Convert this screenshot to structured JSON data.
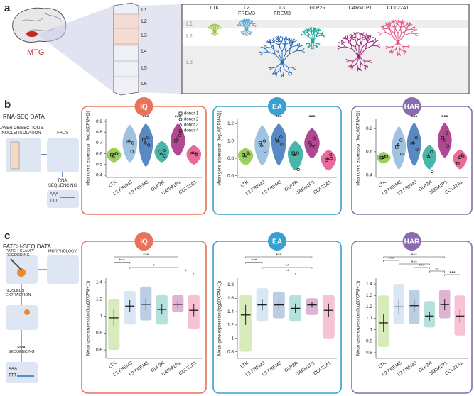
{
  "panel_a": {
    "label": "a",
    "region": "MTG",
    "layers": [
      "L1",
      "L2",
      "L3",
      "L4",
      "L5",
      "L6"
    ],
    "cell_types": [
      "LTK",
      "L2 FREM3",
      "L3 FREM3",
      "GLP2R",
      "CARM1P1",
      "COL22A1"
    ]
  },
  "panel_b": {
    "label": "b",
    "heading": "RNA-SEQ DATA",
    "steps": [
      "LAYER DISSECTION & NUCLEI ISOLATION",
      "FACS",
      "RNA SEQUENCING"
    ],
    "seq": [
      "AAA",
      "TTT"
    ]
  },
  "panel_c": {
    "label": "c",
    "heading": "PATCH-SEQ DATA",
    "steps": [
      "PATCH-CLAMP RECORDING",
      "MORPHOLOGY",
      "NUCLEUS EXTRACTION",
      "RNA SEQUENCING"
    ],
    "seq": [
      "AAA",
      "TTT"
    ]
  },
  "donors": {
    "names": [
      "donor 1",
      "donor 2",
      "donor 3",
      "donor 4"
    ],
    "symbols": [
      "square",
      "circle",
      "triangle",
      "circle"
    ]
  },
  "chart_data": [
    {
      "type": "violin",
      "title": "IQ",
      "accent": "#e8735a",
      "ylabel": "Mean gene expression (log10(CPM+1))",
      "legend": true,
      "categories": [
        "LTK",
        "L2 FREM3",
        "L3 FREM3",
        "GLP2R",
        "CARM1P1",
        "COL22A1"
      ],
      "colors": [
        "#8dc63f",
        "#8fb9dc",
        "#3c74b8",
        "#2aa89a",
        "#a3287f",
        "#e8508a"
      ],
      "ylim": [
        0.38,
        0.92
      ],
      "yticks": [
        0.4,
        0.5,
        0.6,
        0.7,
        0.8,
        0.9
      ],
      "min": [
        0.52,
        0.52,
        0.48,
        0.52,
        0.58,
        0.5
      ],
      "median": [
        0.59,
        0.7,
        0.72,
        0.62,
        0.72,
        0.6
      ],
      "max": [
        0.66,
        0.87,
        0.88,
        0.72,
        0.88,
        0.68
      ],
      "stars": [
        null,
        null,
        "***",
        null,
        "***",
        null
      ],
      "donor_values": [
        [
          0.59,
          0.71,
          0.73,
          0.62,
          0.72,
          0.6
        ],
        [
          0.6,
          0.62,
          0.75,
          0.63,
          0.77,
          0.6
        ],
        [
          0.58,
          0.72,
          0.7,
          0.6,
          0.74,
          0.61
        ],
        [
          0.6,
          0.7,
          0.68,
          0.58,
          0.8,
          0.59
        ]
      ]
    },
    {
      "type": "violin",
      "title": "EA",
      "accent": "#3aa0d0",
      "ylabel": "Mean gene expression (log10(CPM+1))",
      "legend": false,
      "categories": [
        "LTK",
        "L2 FREM3",
        "L3 FREM3",
        "GLP2R",
        "CARM1P1",
        "COL22A1"
      ],
      "colors": [
        "#8dc63f",
        "#8fb9dc",
        "#3c74b8",
        "#2aa89a",
        "#a3287f",
        "#e8508a"
      ],
      "ylim": [
        0.58,
        1.25
      ],
      "yticks": [
        0.6,
        0.8,
        {
          "value": 1,
          "label": "1.0"
        },
        1.2
      ],
      "min": [
        0.72,
        0.72,
        0.72,
        0.66,
        0.8,
        0.66
      ],
      "median": [
        0.84,
        0.97,
        1.02,
        0.86,
        0.98,
        0.8
      ],
      "max": [
        0.92,
        1.18,
        1.2,
        1.0,
        1.15,
        0.9
      ],
      "stars": [
        null,
        null,
        "***",
        null,
        "***",
        null
      ],
      "donor_values": [
        [
          0.84,
          0.98,
          1.02,
          0.86,
          0.98,
          0.78
        ],
        [
          0.86,
          1.0,
          1.05,
          0.86,
          1.03,
          0.84
        ],
        [
          0.83,
          0.95,
          1.0,
          0.84,
          0.95,
          0.8
        ],
        [
          0.85,
          0.88,
          0.96,
          0.67,
          0.93,
          0.8
        ]
      ]
    },
    {
      "type": "violin",
      "title": "HAR",
      "accent": "#8a6bb0",
      "ylabel": "Mean gene expression (log10(CPM+1))",
      "legend": false,
      "categories": [
        "LTK",
        "L2 FREM3",
        "L3 FREM3",
        "GLP2R",
        "CARM1P1",
        "COL22A1"
      ],
      "colors": [
        "#8dc63f",
        "#8fb9dc",
        "#3c74b8",
        "#2aa89a",
        "#a3287f",
        "#e8508a"
      ],
      "ylim": [
        0.38,
        0.88
      ],
      "yticks": [
        0.4,
        0.6,
        0.8
      ],
      "min": [
        0.5,
        0.45,
        0.48,
        0.45,
        0.55,
        0.45
      ],
      "median": [
        0.55,
        0.65,
        0.68,
        0.57,
        0.7,
        0.55
      ],
      "max": [
        0.6,
        0.82,
        0.85,
        0.66,
        0.85,
        0.62
      ],
      "stars": [
        null,
        null,
        "***",
        null,
        "***",
        null
      ],
      "donor_values": [
        [
          0.55,
          0.64,
          0.67,
          0.58,
          0.72,
          0.5
        ],
        [
          0.56,
          0.7,
          0.72,
          0.6,
          0.76,
          0.57
        ],
        [
          0.55,
          0.66,
          0.68,
          0.56,
          0.7,
          0.55
        ],
        [
          0.56,
          0.58,
          0.62,
          0.43,
          0.65,
          0.56
        ]
      ]
    },
    {
      "type": "strip",
      "title": "IQ",
      "accent": "#e8735a",
      "ylabel": "Mean gene expression (log10(CPM+1))",
      "categories": [
        "LTK",
        "L2 FREM3",
        "L3 FREM3",
        "GLP2R",
        "CARM1P1",
        "COL22A1"
      ],
      "colors": [
        "#8dc63f",
        "#8fb9dc",
        "#3c74b8",
        "#2aa89a",
        "#a3287f",
        "#e8508a"
      ],
      "ylim": [
        0.5,
        1.45
      ],
      "yticks": [
        0.6,
        0.8,
        1,
        1.2,
        1.4
      ],
      "mean": [
        0.98,
        1.12,
        1.14,
        1.08,
        1.14,
        1.07
      ],
      "sd": [
        0.1,
        0.07,
        0.07,
        0.06,
        0.04,
        0.07
      ],
      "min": [
        0.6,
        0.9,
        0.95,
        0.9,
        1.05,
        0.85
      ],
      "max": [
        1.2,
        1.3,
        1.35,
        1.25,
        1.25,
        1.25
      ],
      "comparisons": [
        {
          "from": "LTK",
          "to": "CARM1P1",
          "label": "***"
        },
        {
          "from": "LTK",
          "to": "L2 FREM3",
          "label": "***"
        },
        {
          "from": "L2 FREM3",
          "to": "CARM1P1",
          "label": "*"
        },
        {
          "from": "CARM1P1",
          "to": "COL22A1",
          "label": "*"
        }
      ]
    },
    {
      "type": "strip",
      "title": "EA",
      "accent": "#3aa0d0",
      "ylabel": "Mean gene expression (log10(CPM+1))",
      "categories": [
        "LTK",
        "L2 FREM3",
        "L3 FREM3",
        "GLP2R",
        "CARM1P1",
        "COL22A1"
      ],
      "colors": [
        "#8dc63f",
        "#8fb9dc",
        "#3c74b8",
        "#2aa89a",
        "#a3287f",
        "#e8508a"
      ],
      "ylim": [
        0.7,
        1.9
      ],
      "yticks": [
        0.8,
        1,
        1.2,
        1.4,
        1.6,
        1.8
      ],
      "mean": [
        1.35,
        1.5,
        1.5,
        1.45,
        1.5,
        1.42
      ],
      "sd": [
        0.15,
        0.08,
        0.07,
        0.07,
        0.04,
        0.1
      ],
      "min": [
        0.8,
        1.25,
        1.3,
        1.25,
        1.35,
        1.0
      ],
      "max": [
        1.65,
        1.75,
        1.7,
        1.65,
        1.6,
        1.65
      ],
      "comparisons": [
        {
          "from": "LTK",
          "to": "CARM1P1",
          "label": "***"
        },
        {
          "from": "LTK",
          "to": "L2 FREM3",
          "label": "***"
        },
        {
          "from": "L2 FREM3",
          "to": "CARM1P1",
          "label": "**"
        },
        {
          "from": "L3 FREM3",
          "to": "GLP2R",
          "label": "**"
        }
      ]
    },
    {
      "type": "strip",
      "title": "HAR",
      "accent": "#8a6bb0",
      "ylabel": "Mean gene expression (log10(CPM+1))",
      "categories": [
        "LTK",
        "L2 FREM3",
        "L3 FREM3",
        "GLP2R",
        "CARM1P1",
        "COL22A1"
      ],
      "colors": [
        "#8dc63f",
        "#8fb9dc",
        "#3c74b8",
        "#2aa89a",
        "#a3287f",
        "#e8508a"
      ],
      "ylim": [
        0.75,
        1.45
      ],
      "yticks": [
        0.8,
        0.9,
        1,
        1.1,
        1.2,
        1.3,
        1.4
      ],
      "mean": [
        1.06,
        1.2,
        1.21,
        1.12,
        1.22,
        1.12
      ],
      "sd": [
        0.08,
        0.06,
        0.05,
        0.04,
        0.05,
        0.06
      ],
      "min": [
        0.85,
        1.05,
        1.05,
        1.02,
        1.1,
        0.95
      ],
      "max": [
        1.3,
        1.4,
        1.35,
        1.25,
        1.35,
        1.3
      ],
      "comparisons": [
        {
          "from": "LTK",
          "to": "CARM1P1",
          "label": "***"
        },
        {
          "from": "LTK",
          "to": "L2 FREM3",
          "label": "***"
        },
        {
          "from": "L2 FREM3",
          "to": "GLP2R",
          "label": "***"
        },
        {
          "from": "L3 FREM3",
          "to": "GLP2R",
          "label": "***"
        },
        {
          "from": "GLP2R",
          "to": "CARM1P1",
          "label": "**"
        },
        {
          "from": "CARM1P1",
          "to": "COL22A1",
          "label": "***"
        }
      ]
    }
  ]
}
